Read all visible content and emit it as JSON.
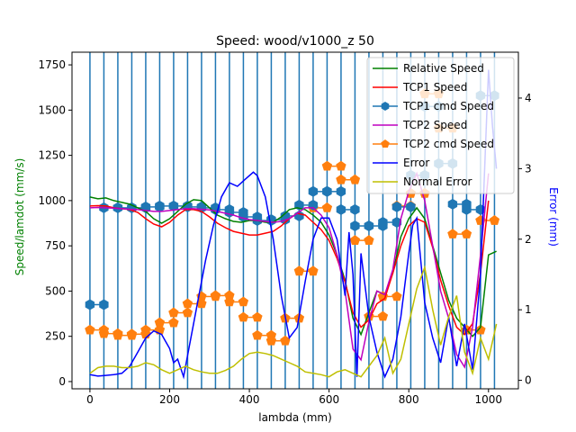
{
  "chart_data": {
    "type": "line",
    "title": "Speed: wood/v1000_z    50",
    "xlabel": "lambda (mm)",
    "ylabel": "Speed/lamdot (mm/s)",
    "ylabel_right": "Error (mm)",
    "xlim": [
      -45,
      1075
    ],
    "ylim": [
      -40,
      1820
    ],
    "ylim_right": [
      -0.12,
      4.65
    ],
    "xticks": [
      0,
      200,
      400,
      600,
      800,
      1000
    ],
    "yticks": [
      0,
      250,
      500,
      750,
      1000,
      1250,
      1500,
      1750
    ],
    "yticks_right": [
      0,
      1,
      2,
      3,
      4
    ],
    "grid": false,
    "legend_position": "upper right",
    "vlines_x": [
      0,
      35,
      70,
      105,
      140,
      175,
      210,
      245,
      280,
      315,
      350,
      385,
      420,
      455,
      490,
      525,
      560,
      595,
      630,
      665,
      700,
      735,
      770,
      805,
      840,
      875,
      910,
      945,
      980,
      1015
    ],
    "series": [
      {
        "name": "Relative Speed",
        "axis": "left",
        "color": "#008000",
        "marker": "none",
        "x": [
          0,
          20,
          40,
          60,
          80,
          100,
          120,
          140,
          160,
          180,
          200,
          220,
          240,
          260,
          280,
          300,
          320,
          340,
          360,
          380,
          400,
          420,
          440,
          460,
          480,
          500,
          520,
          540,
          560,
          580,
          600,
          620,
          640,
          660,
          680,
          700,
          720,
          740,
          760,
          780,
          800,
          820,
          840,
          860,
          880,
          900,
          920,
          940,
          960,
          980,
          1000,
          1020
        ],
        "y": [
          1020,
          1010,
          1015,
          1000,
          990,
          980,
          960,
          940,
          900,
          875,
          900,
          940,
          980,
          1005,
          1000,
          960,
          920,
          900,
          885,
          880,
          890,
          890,
          880,
          880,
          910,
          950,
          960,
          950,
          920,
          880,
          810,
          700,
          560,
          350,
          260,
          380,
          500,
          480,
          600,
          800,
          900,
          960,
          900,
          750,
          600,
          450,
          350,
          300,
          250,
          300,
          700,
          720
        ]
      },
      {
        "name": "TCP1 Speed",
        "axis": "left",
        "color": "#ff0000",
        "marker": "none",
        "x": [
          0,
          20,
          40,
          60,
          80,
          100,
          120,
          140,
          160,
          180,
          200,
          220,
          240,
          260,
          280,
          300,
          320,
          340,
          360,
          380,
          400,
          420,
          440,
          460,
          480,
          500,
          520,
          540,
          560,
          580,
          600,
          620,
          640,
          660,
          680,
          700,
          720,
          740,
          760,
          780,
          800,
          820,
          840,
          860,
          880,
          900,
          920,
          940,
          960,
          980,
          1000
        ],
        "y": [
          970,
          972,
          970,
          960,
          955,
          950,
          935,
          900,
          870,
          855,
          880,
          920,
          950,
          950,
          940,
          910,
          875,
          850,
          830,
          820,
          810,
          810,
          820,
          830,
          860,
          900,
          930,
          920,
          880,
          840,
          780,
          680,
          550,
          380,
          300,
          340,
          430,
          460,
          600,
          750,
          860,
          900,
          880,
          740,
          560,
          420,
          300,
          260,
          320,
          600,
          1000
        ]
      },
      {
        "name": "TCP1 cmd Speed",
        "axis": "left",
        "color": "#1f77b4",
        "marker": "hexagon",
        "x": [
          0,
          35,
          70,
          105,
          140,
          175,
          210,
          245,
          280,
          315,
          350,
          385,
          420,
          455,
          490,
          525,
          560,
          595,
          630,
          665,
          700,
          735,
          770,
          805,
          840,
          875,
          910,
          945,
          980,
          1015
        ],
        "y": [
          425,
          960,
          960,
          960,
          965,
          970,
          970,
          965,
          960,
          950,
          935,
          910,
          890,
          895,
          915,
          975,
          1050,
          1050,
          950,
          860,
          860,
          880,
          965,
          1140,
          1520,
          1205,
          980,
          950,
          1580,
          1590
        ]
      },
      {
        "name": "TCP2 Speed",
        "axis": "left",
        "color": "#bf00bf",
        "marker": "none",
        "x": [
          0,
          20,
          40,
          60,
          80,
          100,
          120,
          140,
          160,
          180,
          200,
          220,
          240,
          260,
          280,
          300,
          320,
          340,
          360,
          380,
          400,
          420,
          440,
          460,
          480,
          500,
          520,
          540,
          560,
          580,
          600,
          620,
          640,
          660,
          680,
          700,
          720,
          740,
          760,
          780,
          800,
          820,
          840,
          860,
          880,
          900,
          920,
          940,
          960,
          980,
          1000
        ],
        "y": [
          960,
          962,
          960,
          958,
          955,
          952,
          950,
          945,
          940,
          940,
          945,
          950,
          955,
          955,
          952,
          948,
          940,
          930,
          920,
          905,
          895,
          890,
          885,
          880,
          885,
          900,
          930,
          960,
          960,
          920,
          850,
          700,
          500,
          180,
          120,
          330,
          500,
          480,
          620,
          900,
          1050,
          1150,
          1000,
          750,
          500,
          350,
          150,
          80,
          300,
          700,
          1150
        ]
      },
      {
        "name": "TCP2 cmd Speed",
        "axis": "left",
        "color": "#ff7f0e",
        "marker": "pentagon",
        "x": [
          0,
          35,
          70,
          105,
          140,
          175,
          210,
          245,
          280,
          315,
          350,
          385,
          420,
          455,
          490,
          525,
          560,
          595,
          630,
          665,
          700,
          735,
          770,
          805,
          840,
          875,
          910,
          945,
          980,
          1015
        ],
        "y": [
          285,
          265,
          255,
          262,
          285,
          325,
          380,
          430,
          470,
          475,
          440,
          355,
          255,
          225,
          350,
          610,
          960,
          1190,
          1115,
          780,
          360,
          470,
          970,
          1040,
          1590,
          1400,
          815,
          285,
          890,
          1100
        ]
      },
      {
        "name": "Error",
        "axis": "right",
        "color": "#0000ff",
        "marker": "none",
        "x": [
          0,
          20,
          40,
          60,
          80,
          100,
          120,
          140,
          160,
          180,
          200,
          210,
          220,
          235,
          240,
          250,
          270,
          290,
          310,
          330,
          350,
          370,
          390,
          410,
          420,
          440,
          460,
          480,
          500,
          520,
          540,
          560,
          580,
          600,
          620,
          640,
          650,
          660,
          670,
          680,
          700,
          720,
          740,
          760,
          780,
          800,
          810,
          820,
          840,
          860,
          880,
          900,
          920,
          940,
          960,
          980,
          1000,
          1010,
          1020
        ],
        "y": [
          0.08,
          0.06,
          0.07,
          0.08,
          0.1,
          0.2,
          0.4,
          0.6,
          0.7,
          0.65,
          0.45,
          0.25,
          0.3,
          0.05,
          0.2,
          0.5,
          1.1,
          1.7,
          2.2,
          2.6,
          2.8,
          2.75,
          2.85,
          2.95,
          2.9,
          2.6,
          2.0,
          1.2,
          0.6,
          0.75,
          1.4,
          2.0,
          2.3,
          2.3,
          2.0,
          1.2,
          2.1,
          1.5,
          0.05,
          1.8,
          0.9,
          0.4,
          0.05,
          0.3,
          0.9,
          1.8,
          2.2,
          2.3,
          1.1,
          0.6,
          0.25,
          0.9,
          0.2,
          0.8,
          0.15,
          1.5,
          4.4,
          3.6,
          3.0
        ]
      },
      {
        "name": "Normal Error",
        "axis": "right",
        "color": "#bfbf00",
        "marker": "none",
        "x": [
          0,
          20,
          40,
          60,
          80,
          100,
          120,
          140,
          160,
          180,
          200,
          220,
          240,
          260,
          280,
          300,
          320,
          340,
          360,
          380,
          400,
          420,
          440,
          460,
          480,
          500,
          520,
          540,
          560,
          580,
          600,
          620,
          640,
          660,
          680,
          700,
          720,
          740,
          760,
          780,
          800,
          820,
          840,
          860,
          880,
          900,
          920,
          940,
          960,
          980,
          1000,
          1020
        ],
        "y": [
          0.1,
          0.18,
          0.2,
          0.2,
          0.18,
          0.18,
          0.2,
          0.25,
          0.22,
          0.15,
          0.1,
          0.15,
          0.2,
          0.15,
          0.12,
          0.1,
          0.1,
          0.14,
          0.2,
          0.3,
          0.38,
          0.4,
          0.38,
          0.35,
          0.3,
          0.25,
          0.2,
          0.12,
          0.1,
          0.08,
          0.05,
          0.12,
          0.15,
          0.1,
          0.05,
          0.2,
          0.35,
          0.6,
          0.1,
          0.3,
          0.8,
          1.3,
          1.6,
          1.0,
          0.5,
          0.9,
          1.2,
          0.4,
          0.1,
          0.6,
          0.3,
          0.8
        ]
      }
    ]
  }
}
